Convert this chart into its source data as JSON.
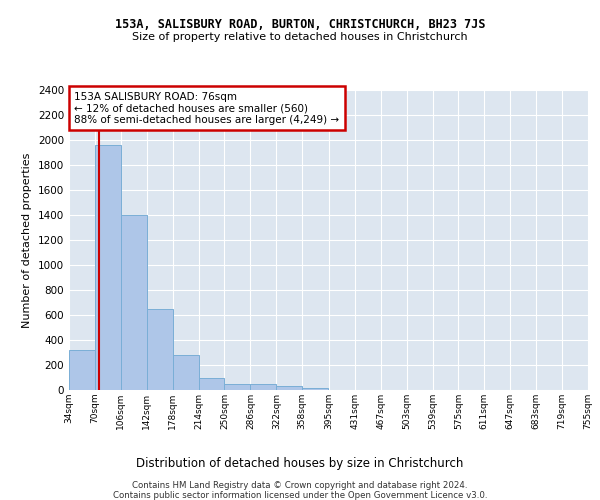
{
  "title1": "153A, SALISBURY ROAD, BURTON, CHRISTCHURCH, BH23 7JS",
  "title2": "Size of property relative to detached houses in Christchurch",
  "xlabel": "Distribution of detached houses by size in Christchurch",
  "ylabel": "Number of detached properties",
  "footnote1": "Contains HM Land Registry data © Crown copyright and database right 2024.",
  "footnote2": "Contains public sector information licensed under the Open Government Licence v3.0.",
  "bar_edges": [
    34,
    70,
    106,
    142,
    178,
    214,
    250,
    286,
    322,
    358,
    395,
    431,
    467,
    503,
    539,
    575,
    611,
    647,
    683,
    719,
    755
  ],
  "bar_heights": [
    320,
    1960,
    1400,
    650,
    280,
    100,
    50,
    45,
    35,
    20,
    0,
    0,
    0,
    0,
    0,
    0,
    0,
    0,
    0,
    0
  ],
  "bar_color": "#aec6e8",
  "bar_edge_color": "#7aaed6",
  "property_line_x": 76,
  "property_line_color": "#cc0000",
  "annotation_line1": "153A SALISBURY ROAD: 76sqm",
  "annotation_line2": "← 12% of detached houses are smaller (560)",
  "annotation_line3": "88% of semi-detached houses are larger (4,249) →",
  "annotation_box_color": "#cc0000",
  "ylim": [
    0,
    2400
  ],
  "yticks": [
    0,
    200,
    400,
    600,
    800,
    1000,
    1200,
    1400,
    1600,
    1800,
    2000,
    2200,
    2400
  ],
  "bg_color": "#dde6f0",
  "fig_bg": "#ffffff",
  "grid_color": "#ffffff"
}
